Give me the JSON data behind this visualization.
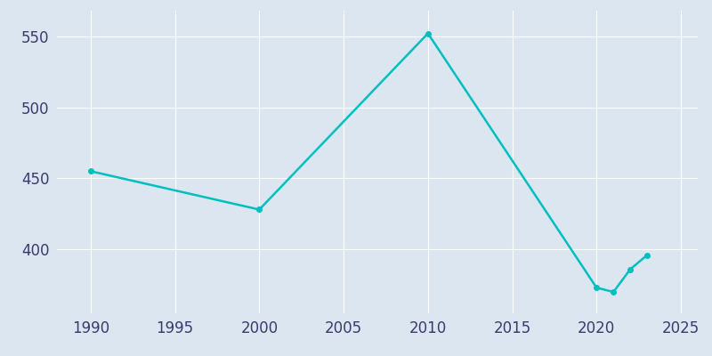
{
  "years": [
    1990,
    2000,
    2010,
    2020,
    2021,
    2022,
    2023
  ],
  "population": [
    455,
    428,
    552,
    373,
    370,
    386,
    396
  ],
  "line_color": "#00BFBF",
  "marker": "o",
  "marker_size": 4,
  "line_width": 1.8,
  "bg_color": "#dce6f0",
  "plot_bg_color": "#dce6f0",
  "grid_color": "#ffffff",
  "tick_label_color": "#3a3a6c",
  "xlim": [
    1988,
    2026
  ],
  "ylim": [
    355,
    568
  ],
  "yticks": [
    400,
    450,
    500,
    550
  ],
  "xticks": [
    1990,
    1995,
    2000,
    2005,
    2010,
    2015,
    2020,
    2025
  ],
  "figsize": [
    8.0,
    4.0
  ],
  "dpi": 100
}
